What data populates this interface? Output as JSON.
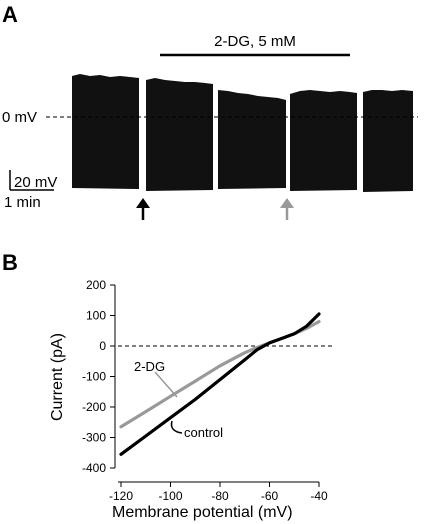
{
  "panel_a": {
    "letter": "A",
    "drug_label": "2-DG, 5 mM",
    "zero_label": "0 mV",
    "scale_voltage": "20 mV",
    "scale_time": "1 min",
    "arrow_colors": [
      "#000000",
      "#999999"
    ]
  },
  "panel_b": {
    "letter": "B"
  },
  "chart_data": {
    "type": "line",
    "xlabel": "Membrane potential (mV)",
    "ylabel": "Current (pA)",
    "xlim": [
      -120,
      -40
    ],
    "ylim": [
      -400,
      200
    ],
    "xticks": [
      -120,
      -100,
      -80,
      -60,
      -40
    ],
    "yticks": [
      -400,
      -300,
      -200,
      -100,
      0,
      100,
      200
    ],
    "reference_line": 0,
    "series": [
      {
        "name": "control",
        "color": "#000000",
        "x": [
          -120,
          -110,
          -100,
          -90,
          -80,
          -70,
          -65,
          -60,
          -55,
          -50,
          -45,
          -40
        ],
        "y": [
          -355,
          -295,
          -235,
          -175,
          -110,
          -45,
          -12,
          10,
          25,
          40,
          65,
          105
        ]
      },
      {
        "name": "2-DG",
        "color": "#999999",
        "x": [
          -120,
          -110,
          -100,
          -90,
          -80,
          -70,
          -65,
          -60,
          -55,
          -50,
          -45,
          -40
        ],
        "y": [
          -265,
          -215,
          -165,
          -115,
          -65,
          -22,
          -5,
          10,
          25,
          40,
          58,
          80
        ]
      }
    ]
  }
}
